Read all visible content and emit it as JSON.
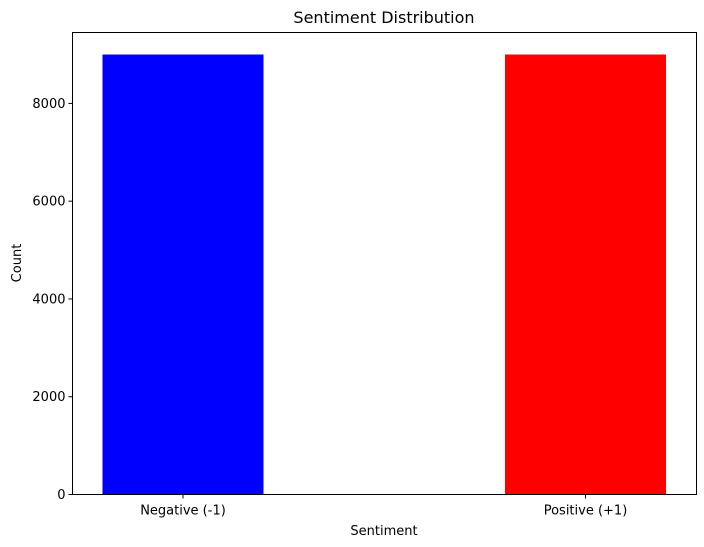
{
  "chart_data": {
    "type": "bar",
    "title": "Sentiment Distribution",
    "xlabel": "Sentiment",
    "ylabel": "Count",
    "categories": [
      "Negative (-1)",
      "Positive (+1)"
    ],
    "values": [
      9000,
      9000
    ],
    "colors": [
      "#0000ff",
      "#ff0000"
    ],
    "ylim": [
      0,
      9450
    ],
    "yticks": [
      0,
      2000,
      4000,
      6000,
      8000
    ],
    "ytick_labels": [
      "0",
      "2000",
      "4000",
      "6000",
      "8000"
    ],
    "grid": false,
    "legend": "none"
  }
}
